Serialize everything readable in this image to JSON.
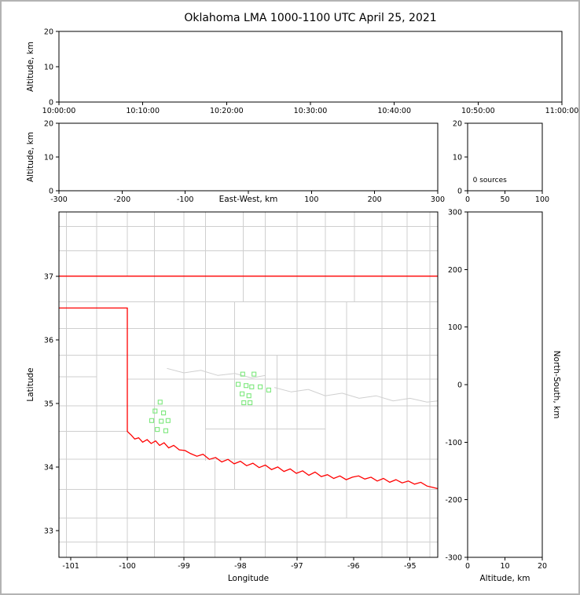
{
  "title": "Oklahoma LMA 1000-1100 UTC April 25, 2021",
  "colors": {
    "frame_border": "#b3b3b3",
    "axis": "#000000",
    "county_line": "#cfcfcf",
    "state_border": "#ff0000",
    "source_marker": "#7CE87C"
  },
  "chart_data": [
    {
      "id": "time-height",
      "type": "scatter",
      "xlabel": "",
      "ylabel": "Altitude, km",
      "xlim": [
        0,
        6
      ],
      "xticks": [
        0,
        1,
        2,
        3,
        4,
        5,
        6
      ],
      "xtick_labels": [
        "10:00:00",
        "10:10:00",
        "10:20:00",
        "10:30:00",
        "10:40:00",
        "10:50:00",
        "11:00:00"
      ],
      "ylim": [
        0,
        20
      ],
      "yticks": [
        0,
        10,
        20
      ],
      "points": []
    },
    {
      "id": "ew-height",
      "type": "scatter",
      "xlabel": "East-West, km",
      "xlabel_inline": true,
      "ylabel": "Altitude, km",
      "xlim": [
        -300,
        300
      ],
      "xticks": [
        -300,
        -200,
        -100,
        0,
        100,
        200,
        300
      ],
      "xtick_labels": [
        "-300",
        "-200",
        "-100",
        "",
        "100",
        "200",
        "300"
      ],
      "ylim": [
        0,
        20
      ],
      "yticks": [
        0,
        10,
        20
      ],
      "points": []
    },
    {
      "id": "alt-histogram",
      "type": "line",
      "xlabel": "",
      "ylabel": "",
      "xlim": [
        0,
        100
      ],
      "xticks": [
        0,
        50,
        100
      ],
      "ylim": [
        0,
        20
      ],
      "yticks": [
        0,
        10,
        20
      ],
      "annotation": {
        "text": "0 sources",
        "fx": 0.07,
        "fy": 0.13
      },
      "points": []
    },
    {
      "id": "plan-view",
      "type": "scatter",
      "xlabel": "Longitude",
      "ylabel": "Latitude",
      "xlim": [
        -101.21,
        -94.51
      ],
      "xticks": [
        -101,
        -100,
        -99,
        -98,
        -97,
        -96,
        -95
      ],
      "ylim": [
        32.58,
        38.01
      ],
      "yticks": [
        33,
        34,
        35,
        36,
        37
      ],
      "marker": {
        "shape": "square",
        "size": 5,
        "color": "#7CE87C"
      },
      "points": [
        [
          -99.42,
          35.02
        ],
        [
          -99.51,
          34.88
        ],
        [
          -99.36,
          34.85
        ],
        [
          -99.57,
          34.73
        ],
        [
          -99.4,
          34.72
        ],
        [
          -99.28,
          34.73
        ],
        [
          -99.47,
          34.59
        ],
        [
          -99.32,
          34.57
        ],
        [
          -97.96,
          35.46
        ],
        [
          -97.76,
          35.46
        ],
        [
          -98.04,
          35.3
        ],
        [
          -97.9,
          35.28
        ],
        [
          -97.8,
          35.26
        ],
        [
          -97.65,
          35.26
        ],
        [
          -97.97,
          35.15
        ],
        [
          -97.85,
          35.12
        ],
        [
          -97.94,
          35.01
        ],
        [
          -97.83,
          35.01
        ],
        [
          -97.5,
          35.21
        ]
      ],
      "county_v": [
        [
          -101.08,
          32.58,
          38.01
        ],
        [
          -100.54,
          32.58,
          38.01
        ],
        [
          -100.0,
          37.0,
          38.01
        ],
        [
          -100.0,
          32.58,
          34.56
        ],
        [
          -99.52,
          32.58,
          38.01
        ],
        [
          -99.0,
          32.58,
          38.01
        ],
        [
          -98.62,
          34.1,
          38.01
        ],
        [
          -98.45,
          32.58,
          34.1
        ],
        [
          -98.1,
          33.65,
          36.6
        ],
        [
          -97.95,
          36.6,
          38.01
        ],
        [
          -97.56,
          32.58,
          38.01
        ],
        [
          -97.35,
          34.1,
          35.76
        ],
        [
          -97.0,
          32.58,
          38.01
        ],
        [
          -96.5,
          32.58,
          38.01
        ],
        [
          -96.12,
          33.2,
          36.6
        ],
        [
          -95.98,
          36.6,
          38.01
        ],
        [
          -95.5,
          32.58,
          38.01
        ],
        [
          -95.05,
          32.58,
          38.01
        ],
        [
          -94.65,
          32.58,
          38.01
        ]
      ],
      "county_h": [
        [
          37.78,
          -101.21,
          -94.51
        ],
        [
          37.4,
          -101.21,
          -94.51
        ],
        [
          36.6,
          -101.21,
          -94.51
        ],
        [
          36.18,
          -101.21,
          -94.51
        ],
        [
          35.76,
          -101.21,
          -94.51
        ],
        [
          35.38,
          -100.0,
          -94.51
        ],
        [
          35.42,
          -101.21,
          -100.54
        ],
        [
          34.96,
          -101.21,
          -94.51
        ],
        [
          34.56,
          -101.21,
          -100.0
        ],
        [
          34.6,
          -98.62,
          -96.5
        ],
        [
          34.12,
          -101.21,
          -94.51
        ],
        [
          33.65,
          -101.21,
          -94.51
        ],
        [
          33.2,
          -101.21,
          -94.51
        ],
        [
          32.82,
          -101.21,
          -94.51
        ]
      ],
      "rivers": [
        [
          [
            -97.4,
            35.25
          ],
          [
            -97.1,
            35.18
          ],
          [
            -96.8,
            35.22
          ],
          [
            -96.5,
            35.12
          ],
          [
            -96.2,
            35.16
          ],
          [
            -95.9,
            35.08
          ],
          [
            -95.6,
            35.12
          ],
          [
            -95.3,
            35.04
          ],
          [
            -95.0,
            35.08
          ],
          [
            -94.7,
            35.02
          ],
          [
            -94.51,
            35.04
          ]
        ],
        [
          [
            -99.3,
            35.55
          ],
          [
            -99.0,
            35.48
          ],
          [
            -98.7,
            35.52
          ],
          [
            -98.4,
            35.44
          ],
          [
            -98.1,
            35.47
          ],
          [
            -97.8,
            35.4
          ],
          [
            -97.56,
            35.44
          ]
        ]
      ],
      "state_border": [
        [
          [
            -101.21,
            37.0
          ],
          [
            -94.51,
            37.0
          ]
        ],
        [
          [
            -101.21,
            36.5
          ],
          [
            -100.0,
            36.5
          ],
          [
            -100.0,
            34.56
          ],
          [
            -99.93,
            34.5
          ],
          [
            -99.87,
            34.44
          ],
          [
            -99.8,
            34.46
          ],
          [
            -99.73,
            34.39
          ],
          [
            -99.65,
            34.43
          ],
          [
            -99.58,
            34.37
          ],
          [
            -99.5,
            34.41
          ],
          [
            -99.43,
            34.34
          ],
          [
            -99.35,
            34.38
          ],
          [
            -99.27,
            34.3
          ],
          [
            -99.18,
            34.34
          ],
          [
            -99.08,
            34.27
          ],
          [
            -98.98,
            34.26
          ],
          [
            -98.88,
            34.21
          ],
          [
            -98.77,
            34.17
          ],
          [
            -98.66,
            34.2
          ],
          [
            -98.55,
            34.12
          ],
          [
            -98.44,
            34.15
          ],
          [
            -98.33,
            34.08
          ],
          [
            -98.22,
            34.12
          ],
          [
            -98.11,
            34.05
          ],
          [
            -98.0,
            34.09
          ],
          [
            -97.89,
            34.02
          ],
          [
            -97.78,
            34.06
          ],
          [
            -97.67,
            33.99
          ],
          [
            -97.56,
            34.03
          ],
          [
            -97.45,
            33.96
          ],
          [
            -97.34,
            34.0
          ],
          [
            -97.23,
            33.93
          ],
          [
            -97.12,
            33.97
          ],
          [
            -97.01,
            33.9
          ],
          [
            -96.9,
            33.94
          ],
          [
            -96.79,
            33.87
          ],
          [
            -96.68,
            33.92
          ],
          [
            -96.57,
            33.85
          ],
          [
            -96.46,
            33.88
          ],
          [
            -96.35,
            33.82
          ],
          [
            -96.24,
            33.86
          ],
          [
            -96.13,
            33.8
          ],
          [
            -96.02,
            33.84
          ],
          [
            -95.91,
            33.86
          ],
          [
            -95.8,
            33.81
          ],
          [
            -95.69,
            33.84
          ],
          [
            -95.58,
            33.78
          ],
          [
            -95.47,
            33.82
          ],
          [
            -95.36,
            33.76
          ],
          [
            -95.25,
            33.8
          ],
          [
            -95.14,
            33.75
          ],
          [
            -95.03,
            33.78
          ],
          [
            -94.92,
            33.73
          ],
          [
            -94.81,
            33.76
          ],
          [
            -94.7,
            33.7
          ],
          [
            -94.6,
            33.68
          ],
          [
            -94.51,
            33.66
          ]
        ]
      ]
    },
    {
      "id": "ns-height",
      "type": "scatter",
      "xlabel": "Altitude, km",
      "ylabel_right": "North-South, km",
      "xlim": [
        0,
        20
      ],
      "xticks": [
        0,
        10,
        20
      ],
      "ylim": [
        -300,
        300
      ],
      "yticks": [
        -300,
        -200,
        -100,
        0,
        100,
        200,
        300
      ],
      "points": []
    }
  ]
}
